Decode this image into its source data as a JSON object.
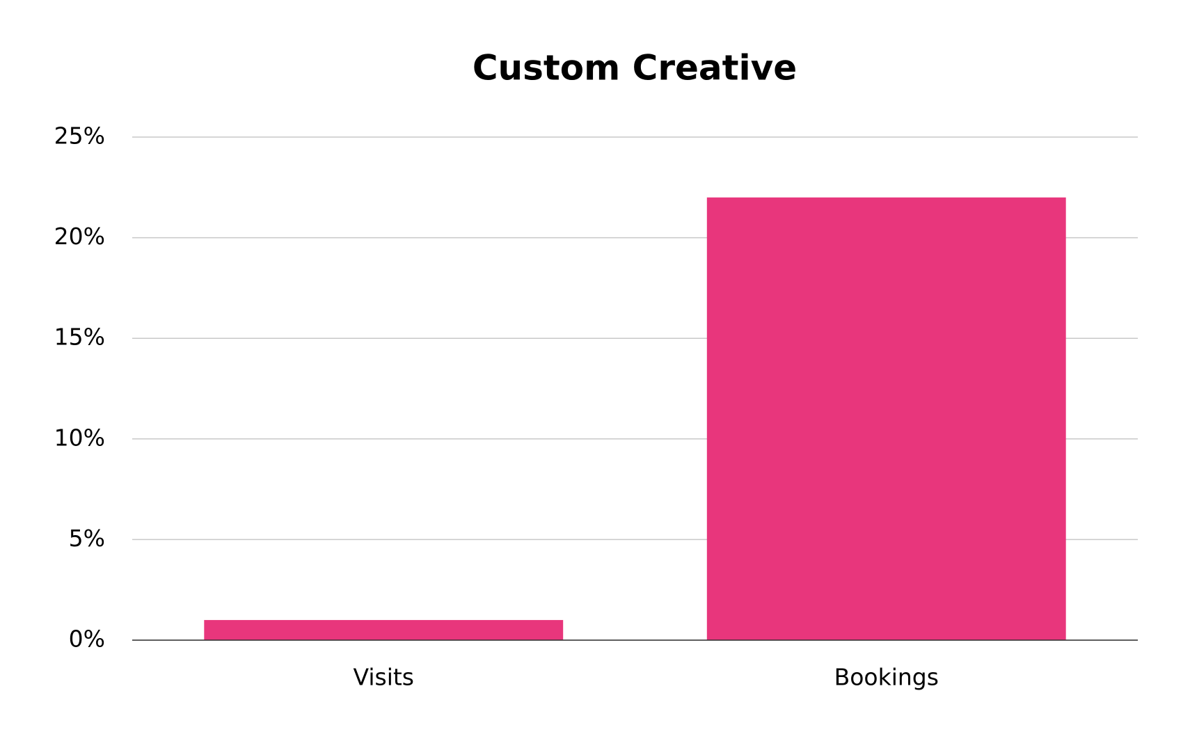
{
  "chart_data": {
    "type": "bar",
    "title": "Custom Creative",
    "categories": [
      "Visits",
      "Bookings"
    ],
    "values": [
      1,
      22
    ],
    "color": "#e8367c",
    "ylim": [
      0,
      25
    ],
    "yticks": [
      {
        "value": 0,
        "label": "0%"
      },
      {
        "value": 5,
        "label": "5%"
      },
      {
        "value": 10,
        "label": "10%"
      },
      {
        "value": 15,
        "label": "15%"
      },
      {
        "value": 20,
        "label": "20%"
      },
      {
        "value": 25,
        "label": "25%"
      }
    ],
    "grid": true
  }
}
